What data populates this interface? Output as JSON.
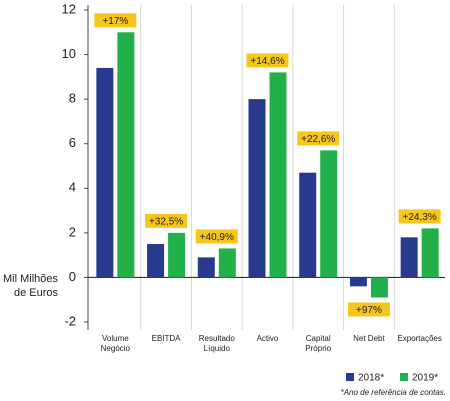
{
  "chart_data": {
    "type": "bar",
    "y_label": "Mil Milhões de Euros",
    "categories": [
      "Volume Negócio",
      "EBITDA",
      "Resultado Líquido",
      "Activo",
      "Capital Próprio",
      "Net Debt",
      "Exportações"
    ],
    "series": [
      {
        "name": "2018*",
        "color": "#283a8e",
        "values": [
          9.4,
          1.5,
          0.9,
          8.0,
          4.7,
          -0.4,
          1.8
        ]
      },
      {
        "name": "2019*",
        "color": "#22b04b",
        "values": [
          11.0,
          2.0,
          1.3,
          9.2,
          5.7,
          -0.9,
          2.2
        ]
      }
    ],
    "annotations": [
      "+17%",
      "+32,5%",
      "+40,9%",
      "+14,6%",
      "+22,6%",
      "+97%",
      "+24,3%"
    ],
    "annotation_color": "#f7c61c",
    "footnote": "*Ano de referência de contas.",
    "ylim": [
      -2,
      12
    ],
    "yticks": [
      -2,
      0,
      2,
      4,
      6,
      8,
      10,
      12
    ],
    "grid": false
  }
}
